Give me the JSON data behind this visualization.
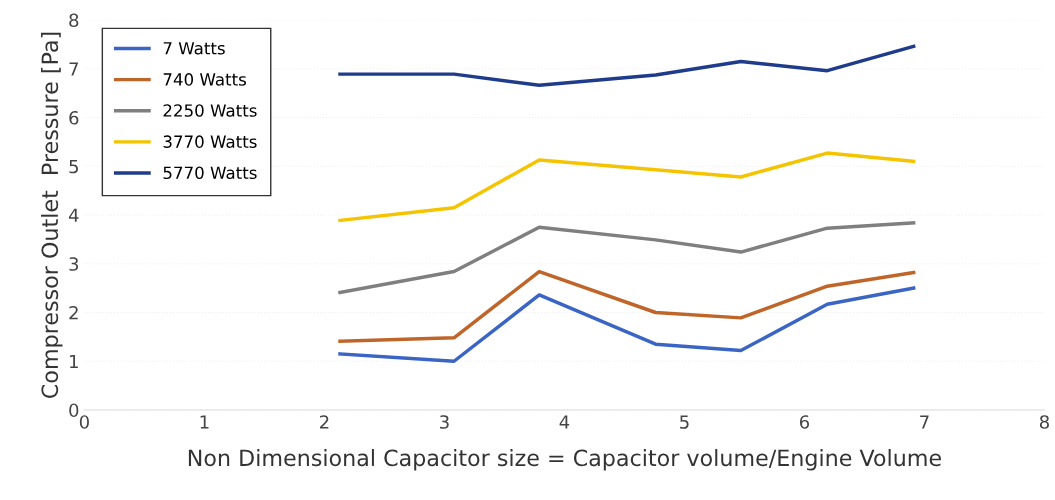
{
  "chart_data": {
    "type": "line",
    "xlabel": "Non Dimensional Capacitor size = Capacitor volume/Engine Volume",
    "ylabel": "Compressor Outlet  Pressure [Pa]",
    "x": [
      2.13,
      3.08,
      3.79,
      4.76,
      5.47,
      6.19,
      6.91
    ],
    "series": [
      {
        "name": "7 Watts",
        "color": "#3a65c4",
        "values": [
          1.15,
          1.0,
          2.36,
          1.35,
          1.22,
          2.17,
          2.5
        ]
      },
      {
        "name": "740 Watts",
        "color": "#c0652a",
        "values": [
          1.41,
          1.48,
          2.84,
          2.0,
          1.89,
          2.54,
          2.82
        ]
      },
      {
        "name": "2250 Watts",
        "color": "#7f7f7f",
        "values": [
          2.41,
          2.84,
          3.75,
          3.49,
          3.24,
          3.73,
          3.84
        ]
      },
      {
        "name": "3770 Watts",
        "color": "#f5c400",
        "values": [
          3.89,
          4.15,
          5.13,
          4.93,
          4.78,
          5.27,
          5.1
        ]
      },
      {
        "name": "5770 Watts",
        "color": "#1f3c8c",
        "values": [
          6.89,
          6.89,
          6.66,
          6.87,
          7.15,
          6.96,
          7.46
        ]
      }
    ],
    "xlim": [
      0,
      8
    ],
    "xticks": [
      0,
      1,
      2,
      3,
      4,
      5,
      6,
      7,
      8
    ],
    "ylim": [
      0,
      8
    ],
    "yticks": [
      0,
      1,
      2,
      3,
      4,
      5,
      6,
      7,
      8
    ],
    "grid": "y",
    "legend": "top left",
    "marker": "none",
    "line_style": "solid"
  }
}
